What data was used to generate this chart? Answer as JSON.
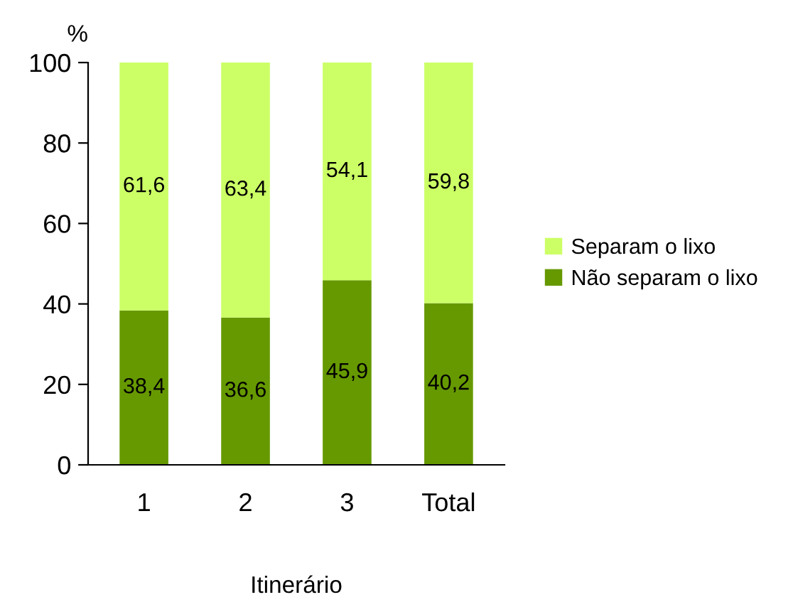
{
  "chart_data": {
    "type": "bar",
    "stacked": true,
    "xlabel": "Itinerário",
    "ylabel": "%",
    "categories": [
      "1",
      "2",
      "3",
      "Total"
    ],
    "series": [
      {
        "name": "Não separam o lixo",
        "color": "#669900",
        "values": [
          38.4,
          36.6,
          45.9,
          40.2
        ],
        "value_labels": [
          "38,4",
          "36,6",
          "45,9",
          "40,2"
        ]
      },
      {
        "name": "Separam o lixo",
        "color": "#ccff66",
        "values": [
          61.6,
          63.4,
          54.1,
          59.8
        ],
        "value_labels": [
          "61,6",
          "63,4",
          "54,1",
          "59,8"
        ]
      }
    ],
    "ylim": [
      0,
      100
    ],
    "yticks": [
      0,
      20,
      40,
      60,
      80,
      100
    ],
    "grid": false,
    "legend": "right"
  }
}
